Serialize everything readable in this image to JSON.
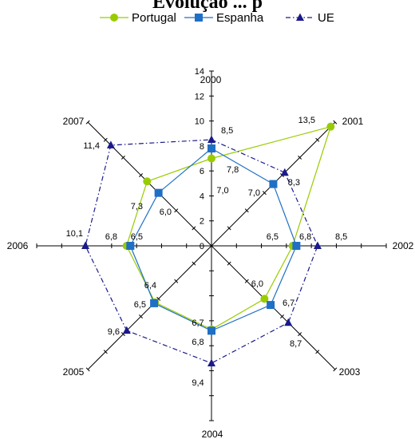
{
  "chart_data": {
    "type": "radar",
    "title": "Evolução ... p",
    "categories": [
      "2000",
      "2001",
      "2002",
      "2003",
      "2004",
      "2005",
      "2006",
      "2007"
    ],
    "rlim": [
      0,
      14
    ],
    "rticks": [
      0,
      2,
      4,
      6,
      8,
      10,
      12,
      14
    ],
    "legend_position": "top",
    "grid": false,
    "series": [
      {
        "name": "Portugal",
        "color": "#99cc00",
        "marker": "circle",
        "line": "solid",
        "values": [
          7.0,
          13.5,
          6.5,
          6.0,
          6.7,
          6.4,
          6.8,
          7.3
        ],
        "labels": [
          "7,0",
          "13,5",
          "6,5",
          "6,0",
          "6,7",
          "6,4",
          "6,8",
          "7,3"
        ]
      },
      {
        "name": "Espanha",
        "color": "#1f6fc5",
        "marker": "square",
        "line": "solid",
        "values": [
          7.8,
          7.0,
          6.8,
          6.7,
          6.8,
          6.5,
          6.5,
          6.0
        ],
        "labels": [
          "7,8",
          "7,0",
          "6,8",
          "6,7",
          "6,8",
          "6,5",
          "6,5",
          "6,0"
        ]
      },
      {
        "name": "UE",
        "color": "#1a1a8c",
        "marker": "triangle",
        "line": "dashdot",
        "values": [
          8.5,
          8.3,
          8.5,
          8.7,
          9.4,
          9.6,
          10.1,
          11.4
        ],
        "labels": [
          "8,5",
          "8,3",
          "8,5",
          "8,7",
          "9,4",
          "9,6",
          "10,1",
          "11,4"
        ]
      }
    ]
  }
}
